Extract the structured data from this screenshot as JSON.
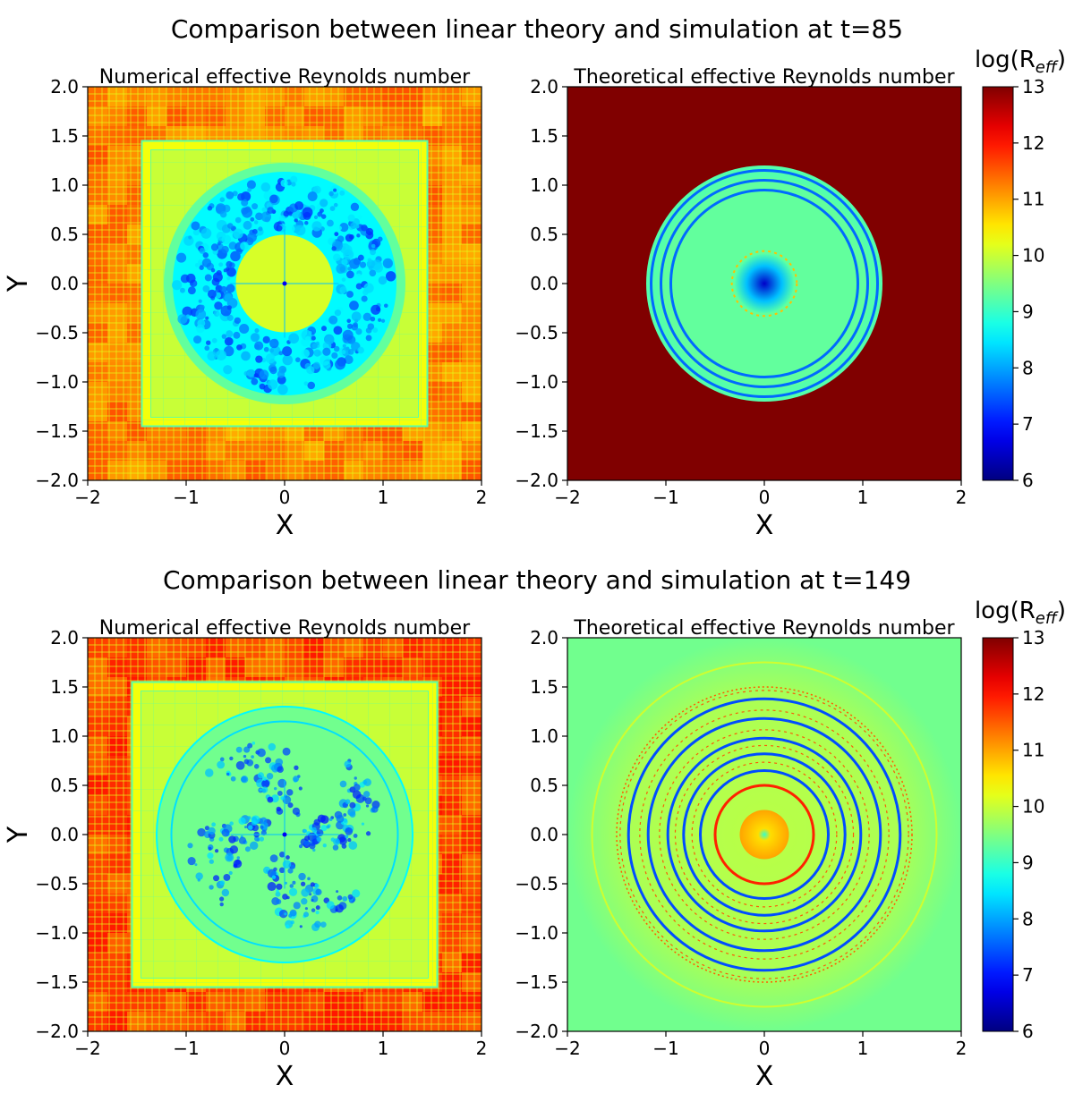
{
  "figure_rows": [
    {
      "title": "Comparison between linear theory and simulation at t=85",
      "time": 85,
      "panels": [
        {
          "title": "Numerical effective Reynolds number",
          "xlabel": "X",
          "ylabel": "Y",
          "kind": "numerical",
          "refined_box_halfwidth": 1.45,
          "turbulent_ring": {
            "inner_radius": 0.55,
            "outer_radius": 1.1
          }
        },
        {
          "title": "Theoretical effective Reynolds number",
          "xlabel": "X",
          "ylabel": "",
          "kind": "theoretical",
          "background_log_R": 13,
          "disk_radius": 1.2,
          "disk_log_R": 9.2,
          "ring_radii": [
            0.95,
            1.05,
            1.15
          ],
          "center_min_log_R": 6.5
        }
      ],
      "colorbar": {
        "label": "log(R",
        "label_sub": "eff",
        "label_close": ")"
      }
    },
    {
      "title": "Comparison between linear theory and simulation at t=149",
      "time": 149,
      "panels": [
        {
          "title": "Numerical effective Reynolds number",
          "xlabel": "X",
          "ylabel": "Y",
          "kind": "numerical",
          "refined_box_halfwidth": 1.55,
          "turbulent_ring": {
            "inner_radius": 0.2,
            "outer_radius": 1.0
          }
        },
        {
          "title": "Theoretical effective Reynolds number",
          "xlabel": "X",
          "ylabel": "",
          "kind": "theoretical",
          "background_log_R": 9.6,
          "ring_radii": [
            0.65,
            0.82,
            0.98,
            1.18,
            1.38
          ],
          "center_blob_radius": 0.25
        }
      ],
      "colorbar": {
        "label": "log(R",
        "label_sub": "eff",
        "label_close": ")"
      }
    }
  ],
  "chart_data": {
    "type": "heatmap",
    "colormap": "jet",
    "x_range": [
      -2,
      2
    ],
    "y_range": [
      -2,
      2
    ],
    "x_ticks": [
      -2,
      -1,
      0,
      1,
      2
    ],
    "y_ticks": [
      -2.0,
      -1.5,
      -1.0,
      -0.5,
      0.0,
      0.5,
      1.0,
      1.5,
      2.0
    ],
    "y_tick_labels": [
      "−2.0",
      "−1.5",
      "−1.0",
      "−0.5",
      "0.0",
      "0.5",
      "1.0",
      "1.5",
      "2.0"
    ],
    "x_tick_labels": [
      "−2",
      "−1",
      "0",
      "1",
      "2"
    ],
    "colorbar_range": [
      6,
      13
    ],
    "colorbar_ticks": [
      6,
      7,
      8,
      9,
      10,
      11,
      12,
      13
    ]
  }
}
